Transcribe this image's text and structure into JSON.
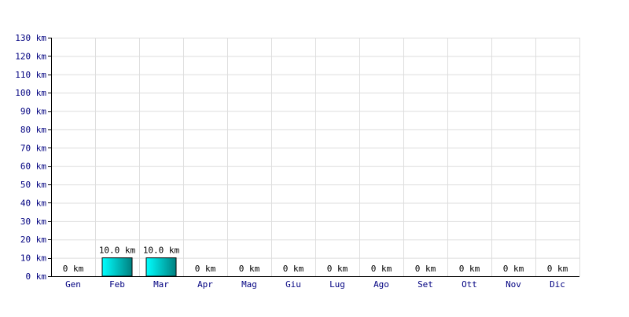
{
  "chart_data": {
    "type": "bar",
    "categories": [
      "Gen",
      "Feb",
      "Mar",
      "Apr",
      "Mag",
      "Giu",
      "Lug",
      "Ago",
      "Set",
      "Ott",
      "Nov",
      "Dic"
    ],
    "values": [
      0,
      10,
      10,
      0,
      0,
      0,
      0,
      0,
      0,
      0,
      0,
      0
    ],
    "data_labels": [
      "0 km",
      "10.0 km",
      "10.0 km",
      "0 km",
      "0 km",
      "0 km",
      "0 km",
      "0 km",
      "0 km",
      "0 km",
      "0 km",
      "0 km"
    ],
    "y_ticks": [
      0,
      10,
      20,
      30,
      40,
      50,
      60,
      70,
      80,
      90,
      100,
      110,
      120,
      130
    ],
    "y_tick_labels": [
      "0 km",
      "10 km",
      "20 km",
      "30 km",
      "40 km",
      "50 km",
      "60 km",
      "70 km",
      "80 km",
      "90 km",
      "100 km",
      "110 km",
      "120 km",
      "130 km"
    ],
    "ylim": [
      0,
      130
    ],
    "grid": true,
    "title": "",
    "xlabel": "",
    "ylabel": ""
  },
  "colors": {
    "bar_light": "#00ffff",
    "bar_dark": "#008080",
    "bar_border": "#000000",
    "tick_text": "#000080",
    "label_text": "#000000",
    "grid": "#dddddd"
  }
}
